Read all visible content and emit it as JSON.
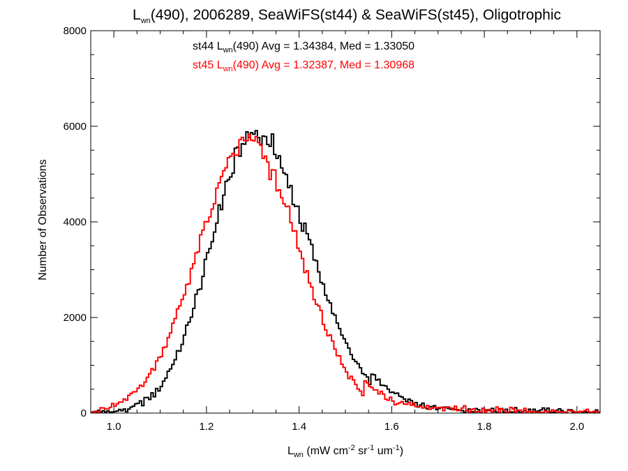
{
  "chart_data": {
    "type": "histogram",
    "title": {
      "prefix": "L",
      "sub": "wn",
      "rest": "(490), 2006289, SeaWiFS(st44) & SeaWiFS(st45), Oligotrophic"
    },
    "xlabel": {
      "prefix": "L",
      "sub": "wn",
      "u1": " (mW cm",
      "s1": "-2",
      "u2": " sr",
      "s2": "-1",
      "u3": " um",
      "s3": "-1",
      "u4": ")"
    },
    "ylabel": "Number of Observations",
    "xlim": [
      0.95,
      2.05
    ],
    "ylim": [
      0,
      8000
    ],
    "xticks": [
      1.0,
      1.2,
      1.4,
      1.6,
      1.8,
      2.0
    ],
    "xtick_labels": [
      "1.0",
      "1.2",
      "1.4",
      "1.6",
      "1.8",
      "2.0"
    ],
    "yticks": [
      0,
      2000,
      4000,
      6000,
      8000
    ],
    "ytick_labels": [
      "0",
      "2000",
      "4000",
      "6000",
      "8000"
    ],
    "bin_width": 0.005,
    "series": [
      {
        "name": "st44",
        "color": "#000000",
        "stats": {
          "prefix": "st44 L",
          "sub": "wn",
          "text": "(490) Avg = 1.34384, Med = 1.33050"
        },
        "avg": 1.34384,
        "median": 1.3305,
        "peak_x": 1.305,
        "peak_y": 5850,
        "sigma_left": 0.095,
        "sigma_right": 0.118
      },
      {
        "name": "st45",
        "color": "#ff0000",
        "stats": {
          "prefix": "st45 L",
          "sub": "wn",
          "text": "(490) Avg = 1.32387, Med = 1.30968"
        },
        "avg": 1.32387,
        "median": 1.30968,
        "peak_x": 1.29,
        "peak_y": 5650,
        "sigma_left": 0.108,
        "sigma_right": 0.11
      }
    ]
  }
}
